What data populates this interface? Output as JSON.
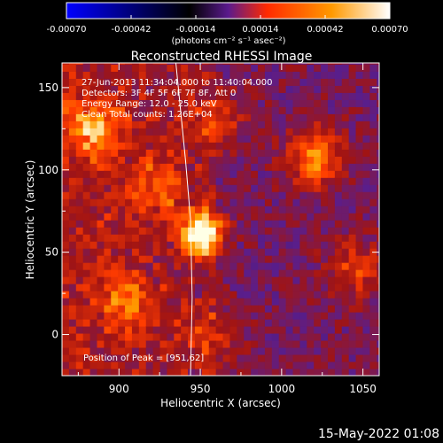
{
  "chart_data": {
    "type": "heatmap",
    "title": "Reconstructed RHESSI Image",
    "xlabel": "Heliocentric X (arcsec)",
    "ylabel": "Heliocentric Y (arcsec)",
    "xlim": [
      865,
      1060
    ],
    "ylim": [
      -25,
      165
    ],
    "x_ticks": [
      900,
      950,
      1000,
      1050
    ],
    "y_ticks": [
      0,
      50,
      100,
      150
    ],
    "colorbar": {
      "min": -0.0007,
      "max": 0.0007,
      "ticks": [
        "-0.00070",
        "-0.00042",
        "-0.00014",
        "0.00014",
        "0.00042",
        "0.00070"
      ],
      "unit_label": "(photons cm⁻² s⁻¹ asec⁻²)",
      "colors": [
        "#0000ff",
        "#000000",
        "#5a1a8c",
        "#ff2a00",
        "#ff9900",
        "#ffffff"
      ]
    },
    "info_lines": [
      "27-Jun-2013 11:34:04.000 to 11:40:04.000",
      "Detectors: 3F 4F 5F 6F 7F 8F, Att 0",
      "Energy Range: 12.0 - 25.0 keV",
      "Clean    Total counts: 1.26E+04"
    ],
    "peak_label": "Position of Peak = [951,62]",
    "peak": [
      951,
      62
    ],
    "sources": [
      {
        "x": 951,
        "y": 62,
        "amp": 1.0
      },
      {
        "x": 1021,
        "y": 108,
        "amp": 0.55
      },
      {
        "x": 885,
        "y": 125,
        "amp": 0.45
      },
      {
        "x": 925,
        "y": 90,
        "amp": 0.35
      },
      {
        "x": 905,
        "y": 20,
        "amp": 0.4
      },
      {
        "x": 1045,
        "y": 40,
        "amp": 0.35
      },
      {
        "x": 955,
        "y": 0,
        "amp": 0.3
      },
      {
        "x": 960,
        "y": 130,
        "amp": 0.3
      }
    ],
    "limb_x": [
      935,
      941,
      944,
      945,
      944
    ]
  },
  "footer": {
    "date": "15-May-2022 01:08"
  }
}
